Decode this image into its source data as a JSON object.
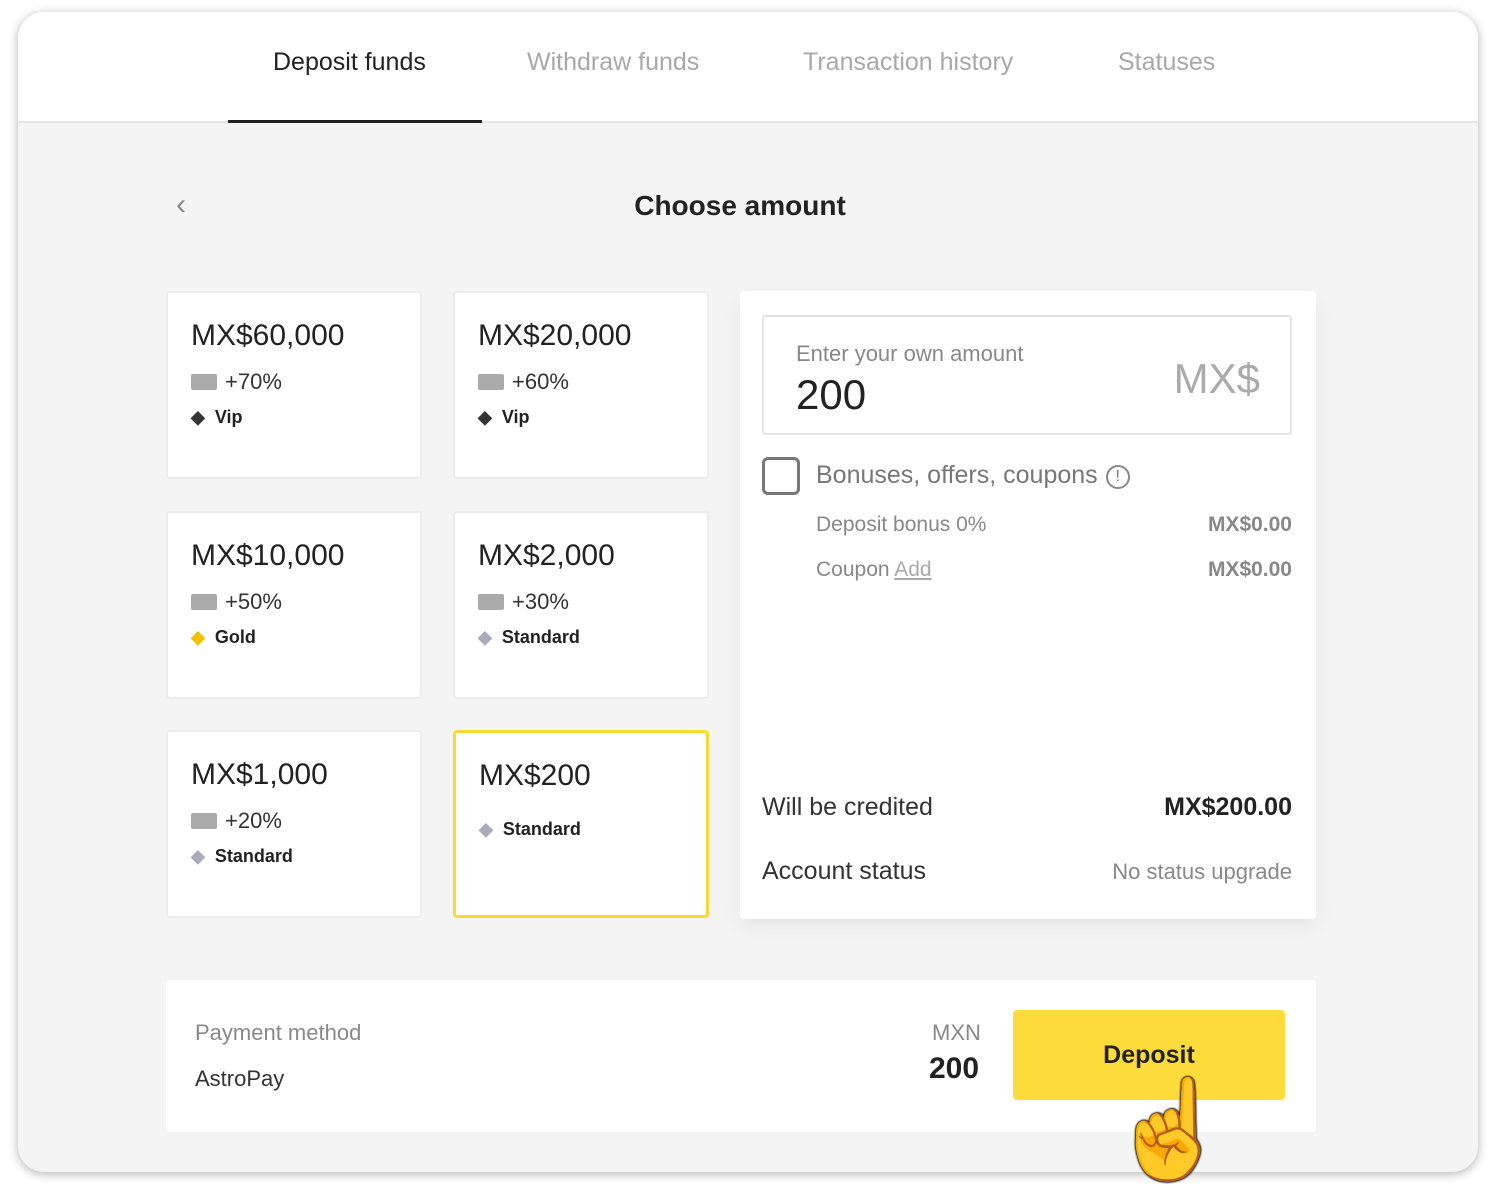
{
  "tabs": [
    {
      "label": "Deposit funds",
      "active": true
    },
    {
      "label": "Withdraw funds"
    },
    {
      "label": "Transaction history"
    },
    {
      "label": "Statuses"
    }
  ],
  "page_title": "Choose amount",
  "amount_cards": [
    {
      "amount": "MX$60,000",
      "bonus": "+70%",
      "status": "Vip",
      "status_icon": "diamond-dark"
    },
    {
      "amount": "MX$20,000",
      "bonus": "+60%",
      "status": "Vip",
      "status_icon": "diamond-dark"
    },
    {
      "amount": "MX$10,000",
      "bonus": "+50%",
      "status": "Gold",
      "status_icon": "diamond-gold"
    },
    {
      "amount": "MX$2,000",
      "bonus": "+30%",
      "status": "Standard",
      "status_icon": "diamond-silver"
    },
    {
      "amount": "MX$1,000",
      "bonus": "+20%",
      "status": "Standard",
      "status_icon": "diamond-silver"
    },
    {
      "amount": "MX$200",
      "status": "Standard",
      "status_icon": "diamond-silver",
      "selected": true
    }
  ],
  "summary": {
    "input_label": "Enter your own amount",
    "input_value": "200",
    "currency_symbol": "MX$",
    "bonuses_label": "Bonuses, offers, coupons",
    "bonuses_checked": false,
    "deposit_bonus_label": "Deposit bonus 0%",
    "deposit_bonus_value": "MX$0.00",
    "coupon_label": "Coupon",
    "coupon_link": "Add",
    "coupon_value": "MX$0.00",
    "credited_label": "Will be credited",
    "credited_value": "MX$200.00",
    "account_status_label": "Account status",
    "account_status_value": "No status upgrade"
  },
  "footer": {
    "payment_method_label": "Payment method",
    "payment_method": "AstroPay",
    "currency": "MXN",
    "amount": "200",
    "deposit_button": "Deposit"
  },
  "colors": {
    "accent": "#fddb3a",
    "selected_border": "#fbd934"
  }
}
